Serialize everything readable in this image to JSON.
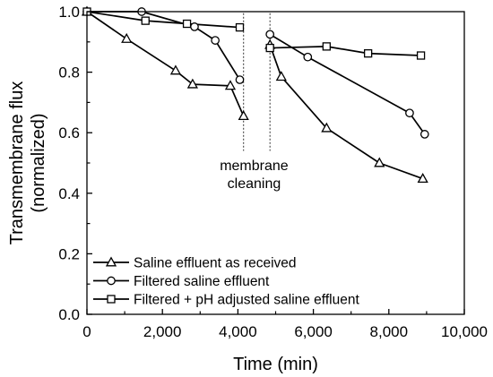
{
  "chart_data": {
    "type": "line",
    "xlabel": "Time (min)",
    "ylabel": [
      "Transmembrane flux",
      "(normalized)"
    ],
    "xlim": [
      0,
      10000
    ],
    "ylim": [
      0,
      1.0
    ],
    "x_ticks": [
      0,
      2000,
      4000,
      6000,
      8000,
      10000
    ],
    "x_tick_labels": [
      "0",
      "2,000",
      "4,000",
      "6,000",
      "8,000",
      "10,000"
    ],
    "y_ticks": [
      0,
      0.2,
      0.4,
      0.6,
      0.8,
      1.0
    ],
    "y_tick_labels": [
      "0.0",
      "0.2",
      "0.4",
      "0.6",
      "0.8",
      "1.0"
    ],
    "grid": false,
    "legend_position": "bottom-left",
    "annotation": {
      "lines": [
        "membrane",
        "cleaning"
      ],
      "dashed_lines_x": [
        4150,
        4850
      ]
    },
    "series": [
      {
        "name": "Saline effluent as received",
        "marker": "triangle",
        "segments": [
          {
            "x": [
              0,
              1050,
              2350,
              2800,
              3800,
              4150
            ],
            "y": [
              1.0,
              0.91,
              0.805,
              0.76,
              0.755,
              0.655
            ]
          },
          {
            "x": [
              4850,
              5150,
              6350,
              7750,
              8900
            ],
            "y": [
              0.89,
              0.785,
              0.615,
              0.5,
              0.448
            ]
          }
        ]
      },
      {
        "name": "Filtered saline effluent",
        "marker": "circle",
        "segments": [
          {
            "x": [
              0,
              1450,
              2850,
              3400,
              4050
            ],
            "y": [
              1.0,
              1.0,
              0.95,
              0.905,
              0.775
            ]
          },
          {
            "x": [
              4850,
              5850,
              8550,
              8950
            ],
            "y": [
              0.925,
              0.85,
              0.665,
              0.595
            ]
          }
        ]
      },
      {
        "name": "Filtered + pH adjusted saline effluent",
        "marker": "square",
        "segments": [
          {
            "x": [
              0,
              1550,
              2650,
              4050
            ],
            "y": [
              1.0,
              0.97,
              0.96,
              0.948
            ]
          },
          {
            "x": [
              4850,
              6350,
              7450,
              8850
            ],
            "y": [
              0.88,
              0.885,
              0.862,
              0.855
            ]
          }
        ]
      }
    ]
  }
}
